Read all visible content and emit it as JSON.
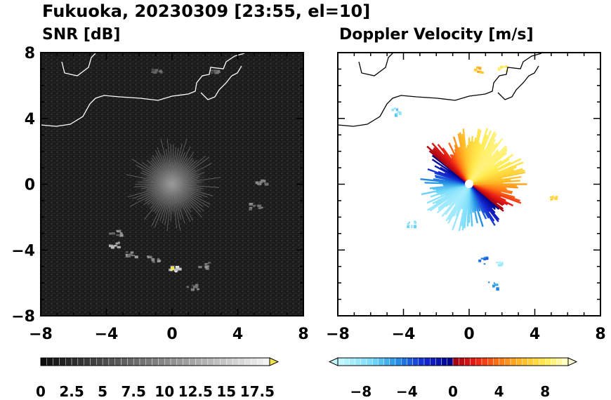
{
  "figure_title": "Fukuoka, 20230309 [23:55, el=10]",
  "chart_data": [
    {
      "type": "heatmap",
      "title": "SNR [dB]",
      "xlim": [
        -8,
        8
      ],
      "ylim": [
        -8,
        8
      ],
      "xticks": [
        "−8",
        "−4",
        "0",
        "4",
        "8"
      ],
      "yticks": [
        "8",
        "4",
        "0",
        "−4",
        "−8"
      ],
      "background_color": "#1c1c1c",
      "colorbar": {
        "range": [
          0,
          18.5
        ],
        "tick_labels": [
          "0",
          "2.5",
          "5",
          "7.5",
          "10",
          "12.5",
          "15",
          "17.5"
        ],
        "extend": "max",
        "over_color": "#f2e44a"
      },
      "echo_clusters": [
        {
          "x": -3.5,
          "y": -2.9,
          "value": 12
        },
        {
          "x": -3.6,
          "y": -3.6,
          "value": 14
        },
        {
          "x": -2.5,
          "y": -4.2,
          "value": 12
        },
        {
          "x": -1.2,
          "y": -4.5,
          "value": 13
        },
        {
          "x": 0.0,
          "y": -5.1,
          "value": 18.5
        },
        {
          "x": 1.9,
          "y": -4.9,
          "value": 12
        },
        {
          "x": 1.2,
          "y": -6.2,
          "value": 10
        },
        {
          "x": 5.0,
          "y": -1.3,
          "value": 11
        },
        {
          "x": 5.4,
          "y": 0.2,
          "value": 11
        },
        {
          "x": -1.0,
          "y": 6.9,
          "value": 9
        },
        {
          "x": 2.5,
          "y": 7.0,
          "value": 9
        }
      ]
    },
    {
      "type": "heatmap",
      "title": "Doppler Velocity [m/s]",
      "xlim": [
        -8,
        8
      ],
      "ylim": [
        -8,
        8
      ],
      "xticks": [
        "−8",
        "−4",
        "0",
        "4",
        "8"
      ],
      "yticks": [
        "8",
        "4",
        "0",
        "−4",
        "−8"
      ],
      "colorbar": {
        "range": [
          -10,
          10
        ],
        "tick_labels": [
          "−8",
          "−4",
          "0",
          "4",
          "8"
        ],
        "extend": "both"
      },
      "echo_clusters": [
        {
          "x": 5.1,
          "y": -0.9,
          "value": 7
        },
        {
          "x": -3.6,
          "y": -2.4,
          "value": -7
        },
        {
          "x": 1.8,
          "y": -4.7,
          "value": -9
        },
        {
          "x": 1.4,
          "y": -6.1,
          "value": -5
        },
        {
          "x": 0.8,
          "y": -4.6,
          "value": -4
        },
        {
          "x": -4.5,
          "y": 4.5,
          "value": -7
        },
        {
          "x": 0.5,
          "y": 7.0,
          "value": 6
        },
        {
          "x": 2.0,
          "y": 7.0,
          "value": 8
        }
      ]
    }
  ]
}
